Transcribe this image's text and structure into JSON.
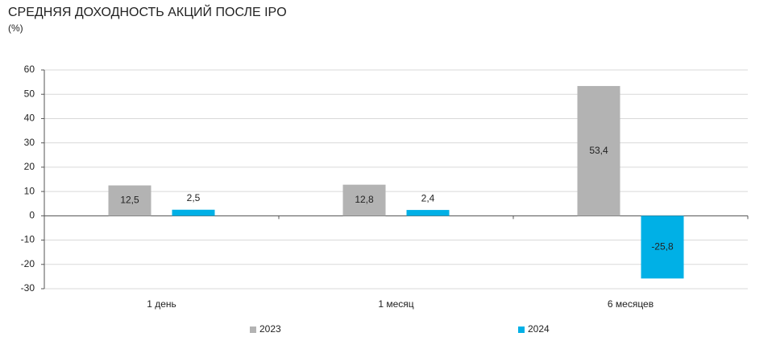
{
  "chart_data": {
    "type": "bar",
    "title": "СРЕДНЯЯ ДОХОДНОСТЬ АКЦИЙ ПОСЛЕ IPO",
    "subtitle": "(%)",
    "categories": [
      "1 день",
      "1 месяц",
      "6 месяцев"
    ],
    "series": [
      {
        "name": "2023",
        "color": "#b3b3b3",
        "values": [
          12.5,
          12.8,
          53.4
        ],
        "value_labels": [
          "12,5",
          "12,8",
          "53,4"
        ]
      },
      {
        "name": "2024",
        "color": "#00b0e6",
        "values": [
          2.5,
          2.4,
          -25.8
        ],
        "value_labels": [
          "2,5",
          "2,4",
          "-25,8"
        ]
      }
    ],
    "ylim": [
      -30,
      60
    ],
    "yticks": [
      -30,
      -20,
      -10,
      0,
      10,
      20,
      30,
      40,
      50,
      60
    ],
    "grid": true,
    "legend": "bottom"
  }
}
